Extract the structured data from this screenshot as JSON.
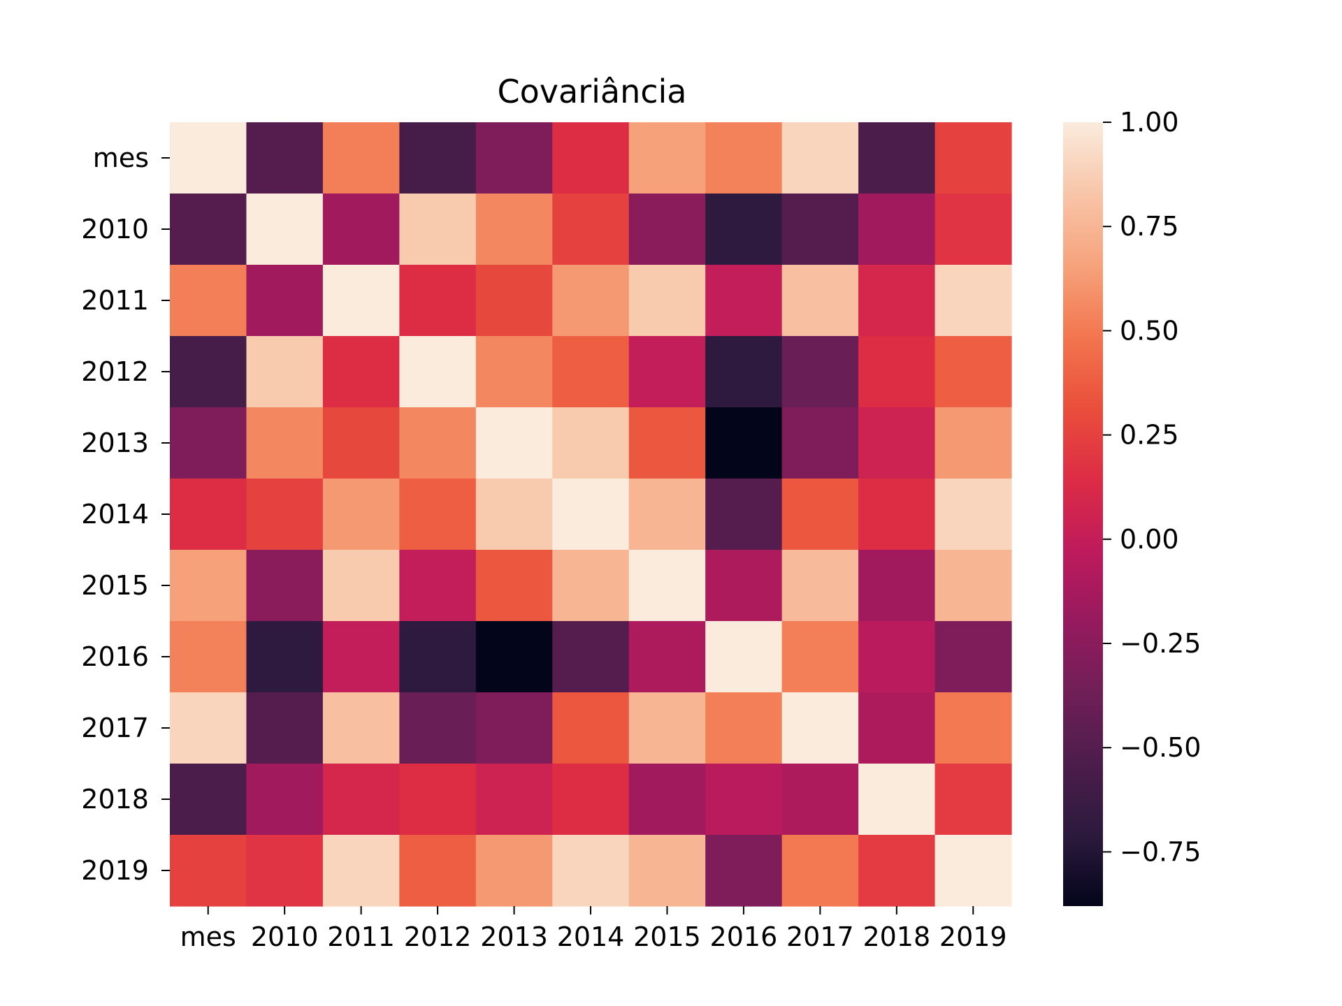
{
  "chart_data": {
    "type": "heatmap",
    "title": "Covariância",
    "xlabel": "",
    "ylabel": "",
    "x_categories": [
      "mes",
      "2010",
      "2011",
      "2012",
      "2013",
      "2014",
      "2015",
      "2016",
      "2017",
      "2018",
      "2019"
    ],
    "y_categories": [
      "mes",
      "2010",
      "2011",
      "2012",
      "2013",
      "2014",
      "2015",
      "2016",
      "2017",
      "2018",
      "2019"
    ],
    "values": [
      [
        1.0,
        -0.5,
        0.52,
        -0.57,
        -0.3,
        0.15,
        0.65,
        0.53,
        0.9,
        -0.55,
        0.25
      ],
      [
        -0.5,
        1.0,
        -0.15,
        0.85,
        0.55,
        0.25,
        -0.25,
        -0.7,
        -0.5,
        -0.15,
        0.18
      ],
      [
        0.52,
        -0.15,
        1.0,
        0.15,
        0.28,
        0.62,
        0.85,
        0.0,
        0.8,
        0.1,
        0.9
      ],
      [
        -0.57,
        0.85,
        0.15,
        1.0,
        0.55,
        0.38,
        0.0,
        -0.7,
        -0.4,
        0.15,
        0.38
      ],
      [
        -0.3,
        0.55,
        0.28,
        0.55,
        1.0,
        0.85,
        0.35,
        -0.88,
        -0.3,
        0.05,
        0.62
      ],
      [
        0.15,
        0.25,
        0.62,
        0.38,
        0.85,
        1.0,
        0.75,
        -0.5,
        0.35,
        0.15,
        0.9
      ],
      [
        0.65,
        -0.25,
        0.85,
        0.0,
        0.35,
        0.75,
        1.0,
        -0.1,
        0.78,
        -0.15,
        0.75
      ],
      [
        0.53,
        -0.7,
        0.0,
        -0.7,
        -0.88,
        -0.5,
        -0.1,
        1.0,
        0.52,
        -0.05,
        -0.3
      ],
      [
        0.9,
        -0.5,
        0.8,
        -0.4,
        -0.3,
        0.35,
        0.75,
        0.52,
        1.0,
        -0.1,
        0.5
      ],
      [
        -0.55,
        -0.15,
        0.1,
        0.15,
        0.05,
        0.15,
        -0.15,
        -0.05,
        -0.1,
        1.0,
        0.22
      ],
      [
        0.25,
        0.18,
        0.9,
        0.38,
        0.62,
        0.9,
        0.75,
        -0.3,
        0.5,
        0.22,
        1.0
      ]
    ],
    "colorbar": {
      "vmin": -0.88,
      "vmax": 1.0,
      "ticks": [
        1.0,
        0.75,
        0.5,
        0.25,
        0.0,
        -0.25,
        -0.5,
        -0.75
      ],
      "tick_labels": [
        "1.00",
        "0.75",
        "0.50",
        "0.25",
        "0.00",
        "−0.25",
        "−0.50",
        "−0.75"
      ]
    },
    "colormap": "rocket",
    "colormap_stops": [
      "#03051a",
      "#2c1a3d",
      "#4c1d4b",
      "#701f57",
      "#961a5e",
      "#bf1b5c",
      "#dd2c45",
      "#ea4f3b",
      "#f2764f",
      "#f6a37c",
      "#f8c5a8",
      "#faebdd"
    ],
    "grid": false
  }
}
